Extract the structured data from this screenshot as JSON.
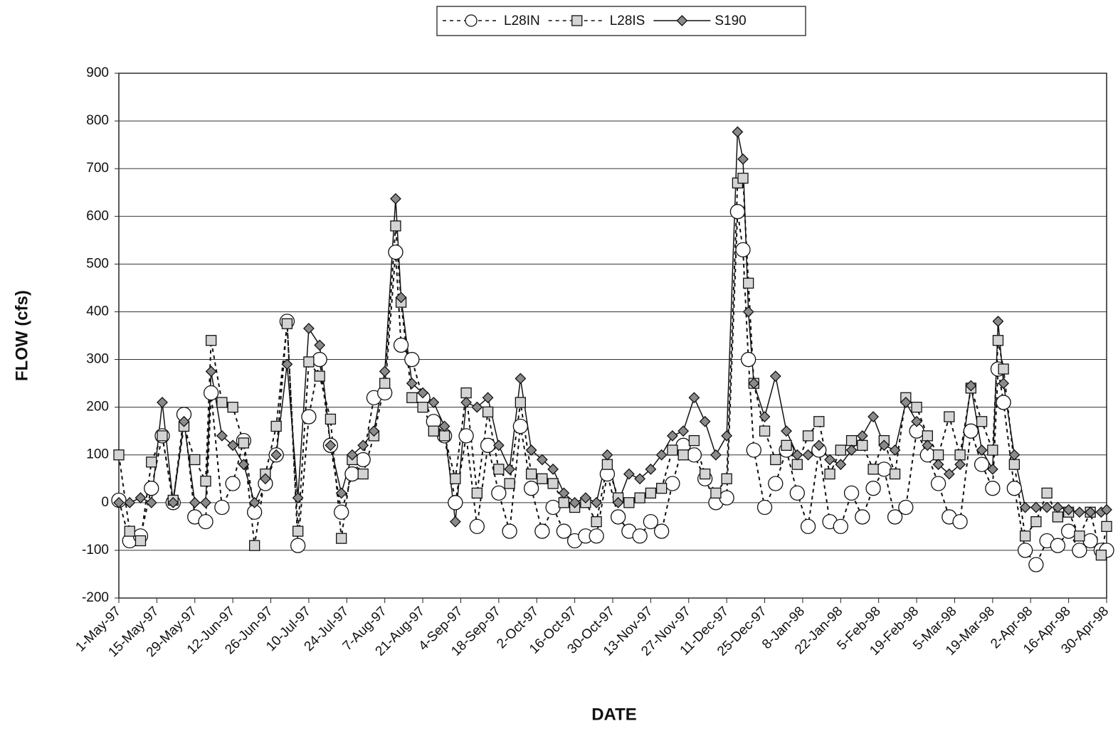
{
  "chart_data": {
    "type": "line",
    "x_label": "DATE",
    "y_label": "FLOW (cfs)",
    "x": [
      "1997-05-01",
      "1997-05-05",
      "1997-05-09",
      "1997-05-13",
      "1997-05-17",
      "1997-05-21",
      "1997-05-25",
      "1997-05-29",
      "1997-06-02",
      "1997-06-04",
      "1997-06-08",
      "1997-06-12",
      "1997-06-16",
      "1997-06-20",
      "1997-06-24",
      "1997-06-28",
      "1997-07-02",
      "1997-07-06",
      "1997-07-10",
      "1997-07-14",
      "1997-07-18",
      "1997-07-22",
      "1997-07-26",
      "1997-07-30",
      "1997-08-03",
      "1997-08-07",
      "1997-08-11",
      "1997-08-13",
      "1997-08-17",
      "1997-08-21",
      "1997-08-25",
      "1997-08-29",
      "1997-09-02",
      "1997-09-06",
      "1997-09-10",
      "1997-09-14",
      "1997-09-18",
      "1997-09-22",
      "1997-09-26",
      "1997-09-30",
      "1997-10-04",
      "1997-10-08",
      "1997-10-12",
      "1997-10-16",
      "1997-10-20",
      "1997-10-24",
      "1997-10-28",
      "1997-11-01",
      "1997-11-05",
      "1997-11-09",
      "1997-11-13",
      "1997-11-17",
      "1997-11-21",
      "1997-11-25",
      "1997-11-29",
      "1997-12-03",
      "1997-12-07",
      "1997-12-11",
      "1997-12-15",
      "1997-12-17",
      "1997-12-19",
      "1997-12-21",
      "1997-12-25",
      "1997-12-29",
      "1998-01-02",
      "1998-01-06",
      "1998-01-10",
      "1998-01-14",
      "1998-01-18",
      "1998-01-22",
      "1998-01-26",
      "1998-01-30",
      "1998-02-03",
      "1998-02-07",
      "1998-02-11",
      "1998-02-15",
      "1998-02-19",
      "1998-02-23",
      "1998-02-27",
      "1998-03-03",
      "1998-03-07",
      "1998-03-11",
      "1998-03-15",
      "1998-03-19",
      "1998-03-21",
      "1998-03-23",
      "1998-03-27",
      "1998-03-31",
      "1998-04-04",
      "1998-04-08",
      "1998-04-12",
      "1998-04-16",
      "1998-04-20",
      "1998-04-24",
      "1998-04-28",
      "1998-04-30"
    ],
    "series": [
      {
        "name": "L28IN",
        "color": "#111111",
        "dash": "dotted",
        "marker": "circle",
        "marker_fill": "#ffffff",
        "values": [
          5,
          -80,
          -70,
          30,
          140,
          0,
          185,
          -30,
          -40,
          230,
          -10,
          40,
          130,
          -20,
          40,
          100,
          380,
          -90,
          180,
          300,
          120,
          -20,
          60,
          90,
          220,
          230,
          525,
          330,
          300,
          220,
          170,
          140,
          0,
          140,
          -50,
          120,
          20,
          -60,
          160,
          30,
          -60,
          -10,
          -60,
          -80,
          -70,
          -70,
          60,
          -30,
          -60,
          -70,
          -40,
          -60,
          40,
          120,
          100,
          50,
          0,
          10,
          610,
          530,
          300,
          110,
          -10,
          40,
          110,
          20,
          -50,
          110,
          -40,
          -50,
          20,
          -30,
          30,
          70,
          -30,
          -10,
          150,
          100,
          40,
          -30,
          -40,
          150,
          80,
          30,
          280,
          210,
          30,
          -100,
          -130,
          -80,
          -90,
          -60,
          -100,
          -80,
          -100,
          -100
        ]
      },
      {
        "name": "L28IS",
        "color": "#111111",
        "dash": "dotted",
        "marker": "square",
        "marker_fill": "#d4d4d4",
        "values": [
          100,
          -60,
          -80,
          85,
          140,
          5,
          160,
          90,
          45,
          340,
          210,
          200,
          125,
          -90,
          60,
          160,
          375,
          -60,
          295,
          265,
          175,
          -75,
          90,
          60,
          140,
          250,
          580,
          420,
          220,
          200,
          150,
          140,
          50,
          230,
          20,
          190,
          70,
          40,
          210,
          60,
          50,
          40,
          0,
          -10,
          0,
          -40,
          80,
          10,
          0,
          10,
          20,
          30,
          110,
          100,
          130,
          60,
          20,
          50,
          670,
          680,
          460,
          250,
          150,
          90,
          120,
          80,
          140,
          170,
          60,
          110,
          130,
          120,
          70,
          130,
          60,
          220,
          200,
          140,
          100,
          180,
          100,
          240,
          170,
          110,
          340,
          280,
          80,
          -70,
          -40,
          20,
          -30,
          -20,
          -70,
          -20,
          -110,
          -50
        ]
      },
      {
        "name": "S190",
        "color": "#111111",
        "dash": "solid",
        "marker": "diamond",
        "marker_fill": "#8a8a8a",
        "values": [
          0,
          0,
          10,
          0,
          210,
          0,
          170,
          0,
          0,
          275,
          140,
          120,
          80,
          0,
          50,
          100,
          290,
          10,
          365,
          330,
          120,
          20,
          100,
          120,
          150,
          275,
          637,
          430,
          250,
          230,
          210,
          160,
          -40,
          210,
          200,
          220,
          120,
          70,
          260,
          110,
          90,
          70,
          20,
          0,
          10,
          0,
          100,
          0,
          60,
          50,
          70,
          100,
          140,
          150,
          220,
          170,
          100,
          140,
          777,
          720,
          400,
          250,
          180,
          265,
          150,
          100,
          100,
          120,
          90,
          80,
          110,
          140,
          180,
          120,
          110,
          210,
          170,
          120,
          80,
          60,
          80,
          245,
          110,
          70,
          380,
          250,
          100,
          -10,
          -10,
          -10,
          -10,
          -15,
          -20,
          -20,
          -20,
          -15
        ]
      }
    ],
    "xlim": [
      "1997-05-01",
      "1998-04-30"
    ],
    "xticks": [
      {
        "value": "1997-05-01",
        "label": "1-May-97"
      },
      {
        "value": "1997-05-15",
        "label": "15-May-97"
      },
      {
        "value": "1997-05-29",
        "label": "29-May-97"
      },
      {
        "value": "1997-06-12",
        "label": "12-Jun-97"
      },
      {
        "value": "1997-06-26",
        "label": "26-Jun-97"
      },
      {
        "value": "1997-07-10",
        "label": "10-Jul-97"
      },
      {
        "value": "1997-07-24",
        "label": "24-Jul-97"
      },
      {
        "value": "1997-08-07",
        "label": "7-Aug-97"
      },
      {
        "value": "1997-08-21",
        "label": "21-Aug-97"
      },
      {
        "value": "1997-09-04",
        "label": "4-Sep-97"
      },
      {
        "value": "1997-09-18",
        "label": "18-Sep-97"
      },
      {
        "value": "1997-10-02",
        "label": "2-Oct-97"
      },
      {
        "value": "1997-10-16",
        "label": "16-Oct-97"
      },
      {
        "value": "1997-10-30",
        "label": "30-Oct-97"
      },
      {
        "value": "1997-11-13",
        "label": "13-Nov-97"
      },
      {
        "value": "1997-11-27",
        "label": "27-Nov-97"
      },
      {
        "value": "1997-12-11",
        "label": "11-Dec-97"
      },
      {
        "value": "1997-12-25",
        "label": "25-Dec-97"
      },
      {
        "value": "1998-01-08",
        "label": "8-Jan-98"
      },
      {
        "value": "1998-01-22",
        "label": "22-Jan-98"
      },
      {
        "value": "1998-02-05",
        "label": "5-Feb-98"
      },
      {
        "value": "1998-02-19",
        "label": "19-Feb-98"
      },
      {
        "value": "1998-03-05",
        "label": "5-Mar-98"
      },
      {
        "value": "1998-03-19",
        "label": "19-Mar-98"
      },
      {
        "value": "1998-04-02",
        "label": "2-Apr-98"
      },
      {
        "value": "1998-04-16",
        "label": "16-Apr-98"
      },
      {
        "value": "1998-04-30",
        "label": "30-Apr-98"
      }
    ],
    "ylim": [
      -200,
      900
    ],
    "yticks": [
      -200,
      -100,
      0,
      100,
      200,
      300,
      400,
      500,
      600,
      700,
      800,
      900
    ],
    "grid": true,
    "legend": "top"
  }
}
